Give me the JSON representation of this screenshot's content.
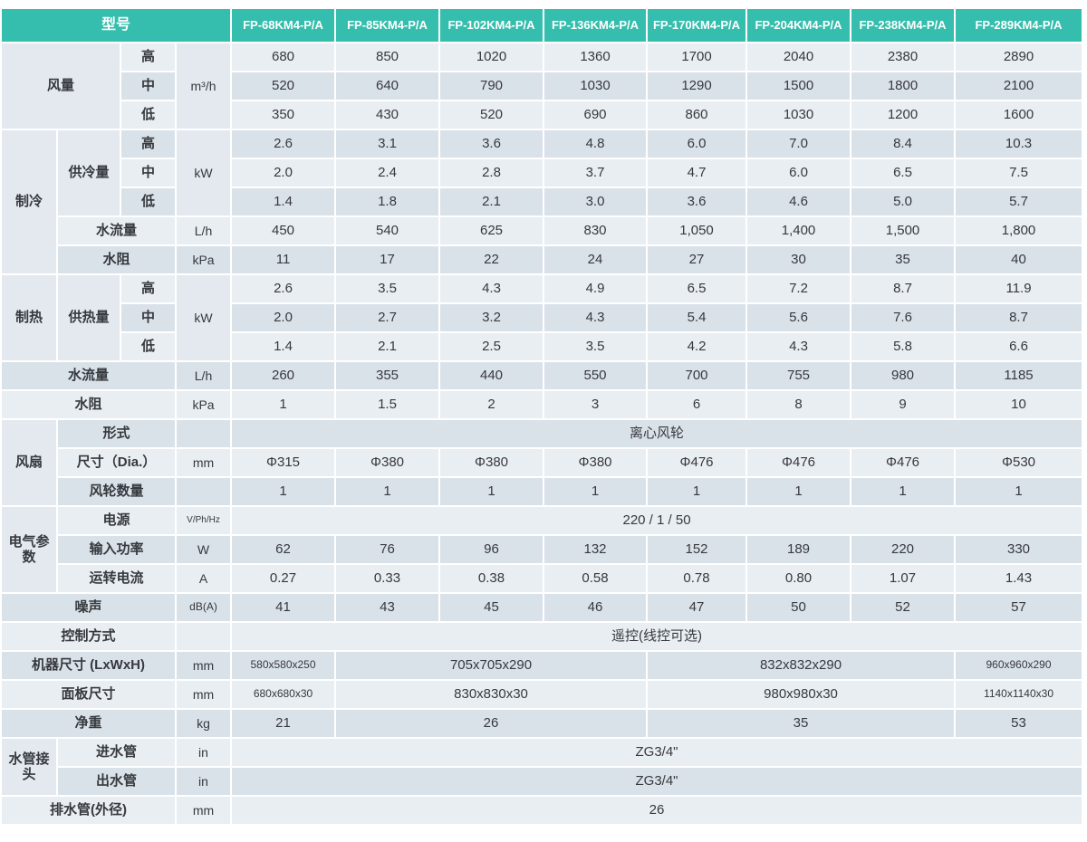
{
  "colors": {
    "header_bg": "#35BEAD",
    "row_light": "#E9EEF2",
    "row_dark": "#DAE2E9",
    "merged_cell": "#E3E9EF",
    "text": "#36393D"
  },
  "header": {
    "label": "型号",
    "models": [
      "FP-68KM4-P/A",
      "FP-85KM4-P/A",
      "FP-102KM4-P/A",
      "FP-136KM4-P/A",
      "FP-170KM4-P/A",
      "FP-204KM4-P/A",
      "FP-238KM4-P/A",
      "FP-289KM4-P/A"
    ]
  },
  "rows": [
    [
      {
        "t": "风量",
        "k": "g",
        "cs": 2,
        "rs": 3
      },
      {
        "t": "高",
        "k": "sp"
      },
      {
        "t": "m³/h",
        "k": "um",
        "rs": 3
      },
      "680",
      "850",
      "1020",
      "1360",
      "1700",
      "2040",
      "2380",
      "2890"
    ],
    [
      {
        "t": "中",
        "k": "sp"
      },
      "520",
      "640",
      "790",
      "1030",
      "1290",
      "1500",
      "1800",
      "2100"
    ],
    [
      {
        "t": "低",
        "k": "sp"
      },
      "350",
      "430",
      "520",
      "690",
      "860",
      "1030",
      "1200",
      "1600"
    ],
    [
      {
        "t": "制冷",
        "k": "g",
        "rs": 5
      },
      {
        "t": "供冷量",
        "k": "s",
        "rs": 3
      },
      {
        "t": "高",
        "k": "sp"
      },
      {
        "t": "kW",
        "k": "um",
        "rs": 3
      },
      "2.6",
      "3.1",
      "3.6",
      "4.8",
      "6.0",
      "7.0",
      "8.4",
      "10.3"
    ],
    [
      {
        "t": "中",
        "k": "sp"
      },
      "2.0",
      "2.4",
      "2.8",
      "3.7",
      "4.7",
      "6.0",
      "6.5",
      "7.5"
    ],
    [
      {
        "t": "低",
        "k": "sp"
      },
      "1.4",
      "1.8",
      "2.1",
      "3.0",
      "3.6",
      "4.6",
      "5.0",
      "5.7"
    ],
    [
      {
        "t": "水流量",
        "k": "l",
        "cs": 2
      },
      {
        "t": "L/h",
        "k": "u"
      },
      "450",
      "540",
      "625",
      "830",
      "1,050",
      "1,400",
      "1,500",
      "1,800"
    ],
    [
      {
        "t": "水阻",
        "k": "l",
        "cs": 2
      },
      {
        "t": "kPa",
        "k": "u"
      },
      "11",
      "17",
      "22",
      "24",
      "27",
      "30",
      "35",
      "40"
    ],
    [
      {
        "t": "制热",
        "k": "g",
        "rs": 3
      },
      {
        "t": "供热量",
        "k": "s",
        "rs": 3
      },
      {
        "t": "高",
        "k": "sp"
      },
      {
        "t": "kW",
        "k": "um",
        "rs": 3
      },
      "2.6",
      "3.5",
      "4.3",
      "4.9",
      "6.5",
      "7.2",
      "8.7",
      "11.9"
    ],
    [
      {
        "t": "中",
        "k": "sp"
      },
      "2.0",
      "2.7",
      "3.2",
      "4.3",
      "5.4",
      "5.6",
      "7.6",
      "8.7"
    ],
    [
      {
        "t": "低",
        "k": "sp"
      },
      "1.4",
      "2.1",
      "2.5",
      "3.5",
      "4.2",
      "4.3",
      "5.8",
      "6.6"
    ],
    [
      {
        "t": "水流量",
        "k": "l",
        "cs": 3
      },
      {
        "t": "L/h",
        "k": "u"
      },
      "260",
      "355",
      "440",
      "550",
      "700",
      "755",
      "980",
      "1185"
    ],
    [
      {
        "t": "水阻",
        "k": "l",
        "cs": 3
      },
      {
        "t": "kPa",
        "k": "u"
      },
      "1",
      "1.5",
      "2",
      "3",
      "6",
      "8",
      "9",
      "10"
    ],
    [
      {
        "t": "风扇",
        "k": "g",
        "rs": 3
      },
      {
        "t": "形式",
        "k": "l",
        "cs": 2
      },
      {
        "t": "",
        "k": "u"
      },
      {
        "t": "离心风轮",
        "k": "vw",
        "cs": 8
      }
    ],
    [
      {
        "t": "尺寸（Dia.）",
        "k": "l",
        "cs": 2
      },
      {
        "t": "mm",
        "k": "u"
      },
      "Φ315",
      "Φ380",
      "Φ380",
      "Φ380",
      "Φ476",
      "Φ476",
      "Φ476",
      "Φ530"
    ],
    [
      {
        "t": "风轮数量",
        "k": "l",
        "cs": 2
      },
      {
        "t": "",
        "k": "u"
      },
      "1",
      "1",
      "1",
      "1",
      "1",
      "1",
      "1",
      "1"
    ],
    [
      {
        "t": "电气参数",
        "k": "g",
        "rs": 3
      },
      {
        "t": "电源",
        "k": "l",
        "cs": 2
      },
      {
        "t": "V/Ph/Hz",
        "k": "u",
        "sz": "xs"
      },
      {
        "t": "220 / 1 / 50",
        "k": "vw",
        "cs": 8
      }
    ],
    [
      {
        "t": "输入功率",
        "k": "l",
        "cs": 2
      },
      {
        "t": "W",
        "k": "u"
      },
      "62",
      "76",
      "96",
      "132",
      "152",
      "189",
      "220",
      "330"
    ],
    [
      {
        "t": "运转电流",
        "k": "l",
        "cs": 2
      },
      {
        "t": "A",
        "k": "u"
      },
      "0.27",
      "0.33",
      "0.38",
      "0.58",
      "0.78",
      "0.80",
      "1.07",
      "1.43"
    ],
    [
      {
        "t": "噪声",
        "k": "l",
        "cs": 3
      },
      {
        "t": "dB(A)",
        "k": "u",
        "sz": "sm"
      },
      "41",
      "43",
      "45",
      "46",
      "47",
      "50",
      "52",
      "57"
    ],
    [
      {
        "t": "控制方式",
        "k": "l",
        "cs": 3
      },
      {
        "t": "",
        "k": "u"
      },
      {
        "t": "遥控(线控可选)",
        "k": "vw",
        "cs": 8
      }
    ],
    [
      {
        "t": "机器尺寸 (LxWxH)",
        "k": "l",
        "cs": 3
      },
      {
        "t": "mm",
        "k": "u"
      },
      {
        "t": "580x580x250",
        "k": "v",
        "sz": "sm"
      },
      {
        "t": "705x705x290",
        "k": "v",
        "cs": 3
      },
      {
        "t": "832x832x290",
        "k": "v",
        "cs": 3
      },
      {
        "t": "960x960x290",
        "k": "v",
        "sz": "sm"
      }
    ],
    [
      {
        "t": "面板尺寸",
        "k": "l",
        "cs": 3
      },
      {
        "t": "mm",
        "k": "u"
      },
      {
        "t": "680x680x30",
        "k": "v",
        "sz": "sm"
      },
      {
        "t": "830x830x30",
        "k": "v",
        "cs": 3
      },
      {
        "t": "980x980x30",
        "k": "v",
        "cs": 3
      },
      {
        "t": "1140x1140x30",
        "k": "v",
        "sz": "sm"
      }
    ],
    [
      {
        "t": "净重",
        "k": "l",
        "cs": 3
      },
      {
        "t": "kg",
        "k": "u"
      },
      {
        "t": "21",
        "k": "v"
      },
      {
        "t": "26",
        "k": "v",
        "cs": 3
      },
      {
        "t": "35",
        "k": "v",
        "cs": 3
      },
      {
        "t": "53",
        "k": "v"
      }
    ],
    [
      {
        "t": "水管接头",
        "k": "g",
        "rs": 2
      },
      {
        "t": "进水管",
        "k": "l",
        "cs": 2
      },
      {
        "t": "in",
        "k": "u"
      },
      {
        "t": "ZG3/4\"",
        "k": "vw",
        "cs": 8
      }
    ],
    [
      {
        "t": "出水管",
        "k": "l",
        "cs": 2
      },
      {
        "t": "in",
        "k": "u"
      },
      {
        "t": "ZG3/4\"",
        "k": "vw",
        "cs": 8
      }
    ],
    [
      {
        "t": "排水管(外径)",
        "k": "l",
        "cs": 3
      },
      {
        "t": "mm",
        "k": "u"
      },
      {
        "t": "26",
        "k": "vw",
        "cs": 8
      }
    ]
  ]
}
